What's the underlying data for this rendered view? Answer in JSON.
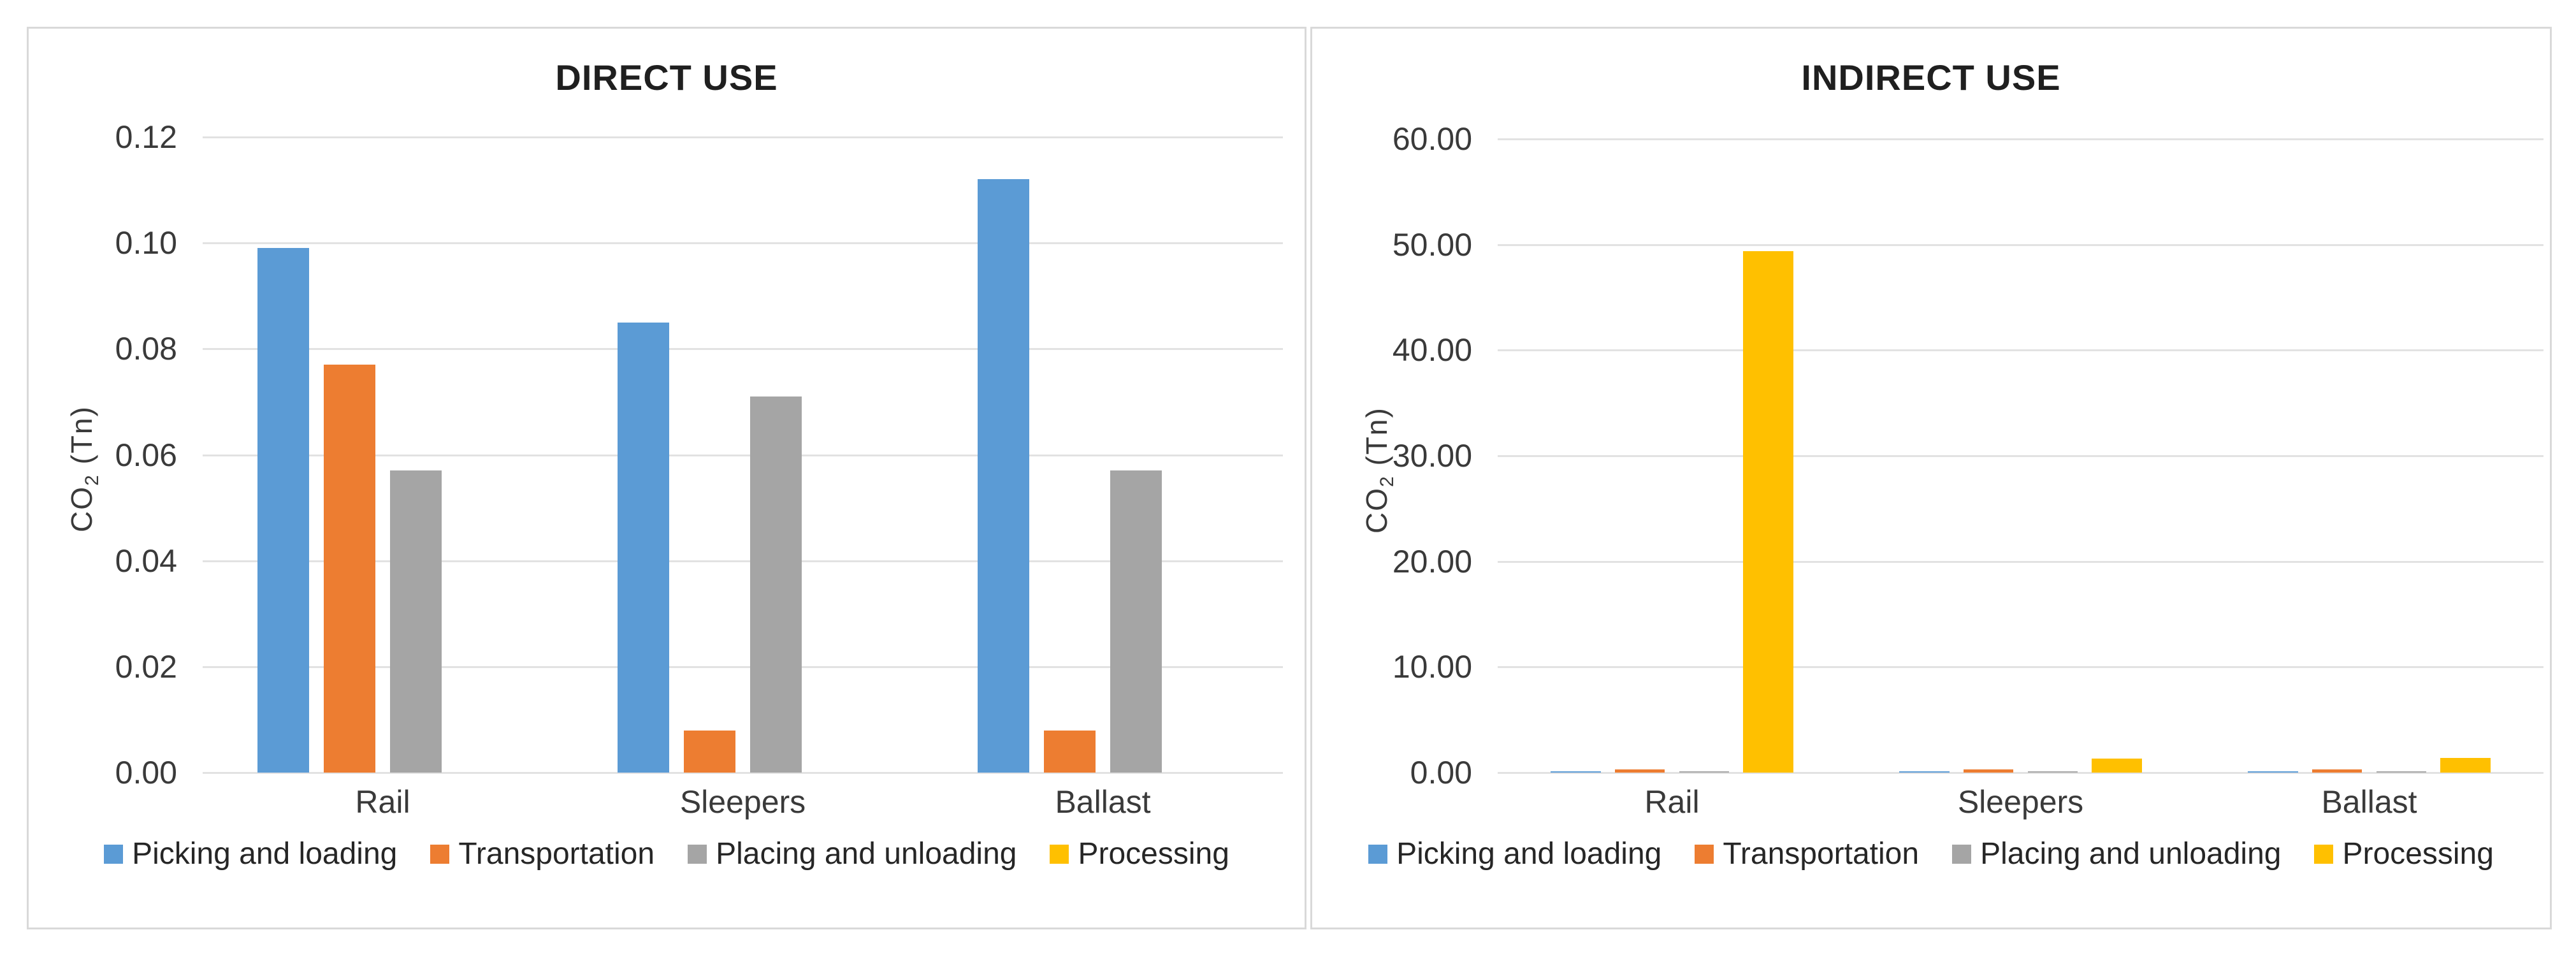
{
  "colors": {
    "blue": "#5B9BD5",
    "orange": "#ED7D31",
    "gray": "#A5A5A5",
    "yellow": "#FFC000",
    "gridline": "#e2e2e2",
    "panel_border": "#d9d9d9",
    "text": "#3a3a3a",
    "title_text": "#1f1f1f"
  },
  "legend": {
    "items": [
      {
        "name": "picking-and-loading",
        "label": "Picking and loading",
        "color": "#5B9BD5"
      },
      {
        "name": "transportation",
        "label": "Transportation",
        "color": "#ED7D31"
      },
      {
        "name": "placing-and-unloading",
        "label": "Placing and unloading",
        "color": "#A5A5A5"
      },
      {
        "name": "processing",
        "label": "Processing",
        "color": "#FFC000"
      }
    ]
  },
  "chart_data": [
    {
      "id": "direct-use",
      "type": "bar",
      "title": "DIRECT USE",
      "ylabel": {
        "prefix": "CO",
        "subscript": "2",
        "suffix": " (Tn)"
      },
      "xlabel": "",
      "categories": [
        "Rail",
        "Sleepers",
        "Ballast"
      ],
      "series": [
        {
          "name": "Picking and loading",
          "color": "#5B9BD5",
          "values": [
            0.099,
            0.085,
            0.112
          ]
        },
        {
          "name": "Transportation",
          "color": "#ED7D31",
          "values": [
            0.077,
            0.008,
            0.008
          ]
        },
        {
          "name": "Placing and unloading",
          "color": "#A5A5A5",
          "values": [
            0.057,
            0.071,
            0.057
          ]
        },
        {
          "name": "Processing",
          "color": "#FFC000",
          "values": [
            0,
            0,
            0
          ]
        }
      ],
      "ylim": [
        0,
        0.12
      ],
      "yticks": [
        {
          "value": 0,
          "label": "0.00"
        },
        {
          "value": 0.02,
          "label": "0.02"
        },
        {
          "value": 0.04,
          "label": "0.04"
        },
        {
          "value": 0.06,
          "label": "0.06"
        },
        {
          "value": 0.08,
          "label": "0.08"
        },
        {
          "value": 0.1,
          "label": "0.10"
        },
        {
          "value": 0.12,
          "label": "0.12"
        }
      ],
      "grid": true,
      "legend_position": "bottom"
    },
    {
      "id": "indirect-use",
      "type": "bar",
      "title": "INDIRECT USE",
      "ylabel": {
        "prefix": "CO",
        "subscript": "2",
        "suffix": " (Tn)"
      },
      "xlabel": "",
      "categories": [
        "Rail",
        "Sleepers",
        "Ballast"
      ],
      "series": [
        {
          "name": "Picking and loading",
          "color": "#5B9BD5",
          "values": [
            0.15,
            0.15,
            0.15
          ]
        },
        {
          "name": "Transportation",
          "color": "#ED7D31",
          "values": [
            0.3,
            0.3,
            0.3
          ]
        },
        {
          "name": "Placing and unloading",
          "color": "#A5A5A5",
          "values": [
            0.1,
            0.1,
            0.1
          ]
        },
        {
          "name": "Processing",
          "color": "#FFC000",
          "values": [
            49.4,
            1.3,
            1.4
          ]
        }
      ],
      "ylim": [
        0,
        60
      ],
      "yticks": [
        {
          "value": 0,
          "label": "0.00"
        },
        {
          "value": 10,
          "label": "10.00"
        },
        {
          "value": 20,
          "label": "20.00"
        },
        {
          "value": 30,
          "label": "30.00"
        },
        {
          "value": 40,
          "label": "40.00"
        },
        {
          "value": 50,
          "label": "50.00"
        },
        {
          "value": 60,
          "label": "60.00"
        }
      ],
      "grid": true,
      "legend_position": "bottom"
    }
  ]
}
